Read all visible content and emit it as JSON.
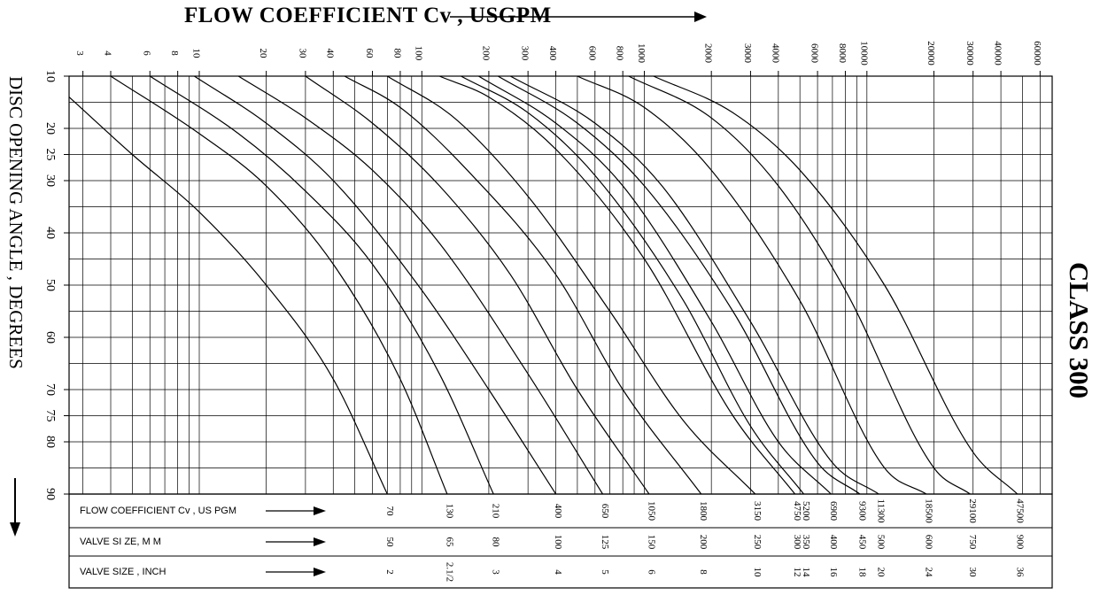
{
  "chart_data": {
    "type": "line",
    "title": "FLOW COEFFICIENT Cv , USGPM",
    "ylabel": "DISC OPENING ANGLE , DEGREES",
    "side_label": "CLASS 300",
    "x_scale": "log",
    "x_major_ticks": [
      "3",
      "4",
      "6",
      "8",
      "10",
      "20",
      "30",
      "40",
      "60",
      "80",
      "100",
      "200",
      "300",
      "400",
      "600",
      "800",
      "1000",
      "2000",
      "3000",
      "4000",
      "6000",
      "8000",
      "10000",
      "20000",
      "30000",
      "40000",
      "60000"
    ],
    "y_ticks": [
      "10",
      "20",
      "25",
      "30",
      "40",
      "50",
      "60",
      "70",
      "75",
      "80",
      "90"
    ],
    "ylim": [
      10,
      90
    ],
    "grid": true,
    "series": [
      {
        "values": [
          [
            2.6,
            14
          ],
          [
            5,
            25
          ],
          [
            10,
            36
          ],
          [
            20,
            50
          ],
          [
            40,
            68
          ],
          [
            70,
            90
          ]
        ]
      },
      {
        "values": [
          [
            4,
            10
          ],
          [
            10,
            21
          ],
          [
            20,
            31
          ],
          [
            40,
            46
          ],
          [
            80,
            68
          ],
          [
            130,
            90
          ]
        ]
      },
      {
        "values": [
          [
            6,
            10
          ],
          [
            15,
            21
          ],
          [
            30,
            32
          ],
          [
            60,
            46
          ],
          [
            120,
            67
          ],
          [
            210,
            90
          ]
        ]
      },
      {
        "values": [
          [
            9.5,
            10
          ],
          [
            20,
            19
          ],
          [
            40,
            30
          ],
          [
            100,
            51
          ],
          [
            200,
            70
          ],
          [
            400,
            90
          ]
        ]
      },
      {
        "values": [
          [
            15,
            10
          ],
          [
            30,
            18
          ],
          [
            60,
            28
          ],
          [
            120,
            42
          ],
          [
            300,
            67
          ],
          [
            650,
            90
          ]
        ]
      },
      {
        "values": [
          [
            30,
            10
          ],
          [
            60,
            19
          ],
          [
            120,
            31
          ],
          [
            250,
            48
          ],
          [
            500,
            70
          ],
          [
            1050,
            90
          ]
        ]
      },
      {
        "values": [
          [
            45,
            10
          ],
          [
            80,
            16
          ],
          [
            160,
            28
          ],
          [
            400,
            48
          ],
          [
            800,
            70
          ],
          [
            1800,
            90
          ]
        ]
      },
      {
        "values": [
          [
            70,
            10
          ],
          [
            140,
            18
          ],
          [
            300,
            33
          ],
          [
            700,
            55
          ],
          [
            1500,
            76
          ],
          [
            3150,
            90
          ]
        ]
      },
      {
        "values": [
          [
            120,
            10
          ],
          [
            200,
            14
          ],
          [
            400,
            24
          ],
          [
            1000,
            45
          ],
          [
            2500,
            75
          ],
          [
            4750,
            90
          ]
        ]
      },
      {
        "values": [
          [
            150,
            10
          ],
          [
            300,
            17
          ],
          [
            600,
            29
          ],
          [
            1500,
            53
          ],
          [
            3000,
            77
          ],
          [
            5200,
            90
          ]
        ]
      },
      {
        "values": [
          [
            180,
            10
          ],
          [
            400,
            19
          ],
          [
            800,
            31
          ],
          [
            2000,
            57
          ],
          [
            4000,
            80
          ],
          [
            6900,
            90
          ]
        ]
      },
      {
        "values": [
          [
            220,
            10
          ],
          [
            500,
            19
          ],
          [
            1000,
            31
          ],
          [
            2500,
            55
          ],
          [
            6000,
            84
          ],
          [
            9300,
            90
          ]
        ]
      },
      {
        "values": [
          [
            250,
            10
          ],
          [
            600,
            19
          ],
          [
            1200,
            31
          ],
          [
            3000,
            57
          ],
          [
            7000,
            84
          ],
          [
            11300,
            90
          ]
        ]
      },
      {
        "values": [
          [
            500,
            10
          ],
          [
            1000,
            16
          ],
          [
            2000,
            28
          ],
          [
            5000,
            53
          ],
          [
            12000,
            85
          ],
          [
            18500,
            90
          ]
        ]
      },
      {
        "values": [
          [
            850,
            10
          ],
          [
            2000,
            18
          ],
          [
            4000,
            31
          ],
          [
            8000,
            51
          ],
          [
            20000,
            85
          ],
          [
            29100,
            90
          ]
        ]
      },
      {
        "values": [
          [
            1100,
            10
          ],
          [
            2500,
            17
          ],
          [
            5000,
            28
          ],
          [
            12000,
            50
          ],
          [
            30000,
            82
          ],
          [
            47500,
            90
          ]
        ]
      }
    ],
    "table_rows": [
      {
        "label": "FLOW COEFFICIENT Cv , US  PGM",
        "values": [
          "70",
          "130",
          "210",
          "400",
          "650",
          "1050",
          "1800",
          "3150",
          "4750",
          "5200",
          "6900",
          "9300",
          "11300",
          "18500",
          "29100",
          "47500"
        ]
      },
      {
        "label": "VALVE SI ZE, M M",
        "values": [
          "50",
          "65",
          "80",
          "100",
          "125",
          "150",
          "200",
          "250",
          "300",
          "350",
          "400",
          "450",
          "500",
          "600",
          "750",
          "900"
        ]
      },
      {
        "label": "VALVE SIZE , INCH",
        "values": [
          "2",
          "2.1/2",
          "3",
          "4",
          "5",
          "6",
          "8",
          "10",
          "12",
          "14",
          "16",
          "18",
          "20",
          "24",
          "30",
          "36"
        ]
      }
    ]
  }
}
